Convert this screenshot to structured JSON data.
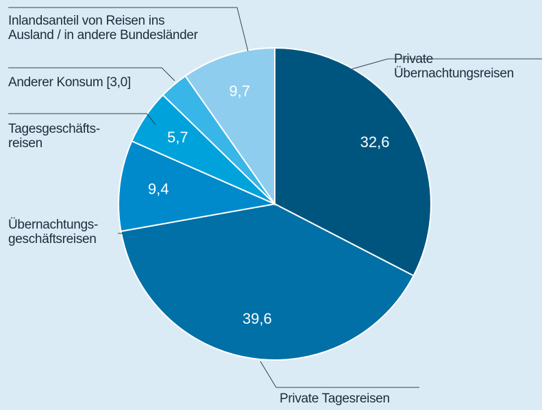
{
  "chart_data": {
    "type": "pie",
    "categories": [
      "Private\nÜbernachtungsreisen",
      "Private Tagesreisen",
      "Übernachtungs-\ngeschäftsreisen",
      "Tagesgeschäfts-\nreisen",
      "Anderer Konsum [3,0]",
      "Inlandsanteil von Reisen ins\nAusland / in andere Bundesländer"
    ],
    "values": [
      32.6,
      39.6,
      9.4,
      5.7,
      3.0,
      9.7
    ],
    "value_labels": [
      "32,6",
      "39,6",
      "9,4",
      "5,7",
      null,
      "9,7"
    ],
    "colors": [
      "#00557f",
      "#0070a6",
      "#008acb",
      "#00a2dc",
      "#38b6e8",
      "#8fcdee"
    ]
  }
}
